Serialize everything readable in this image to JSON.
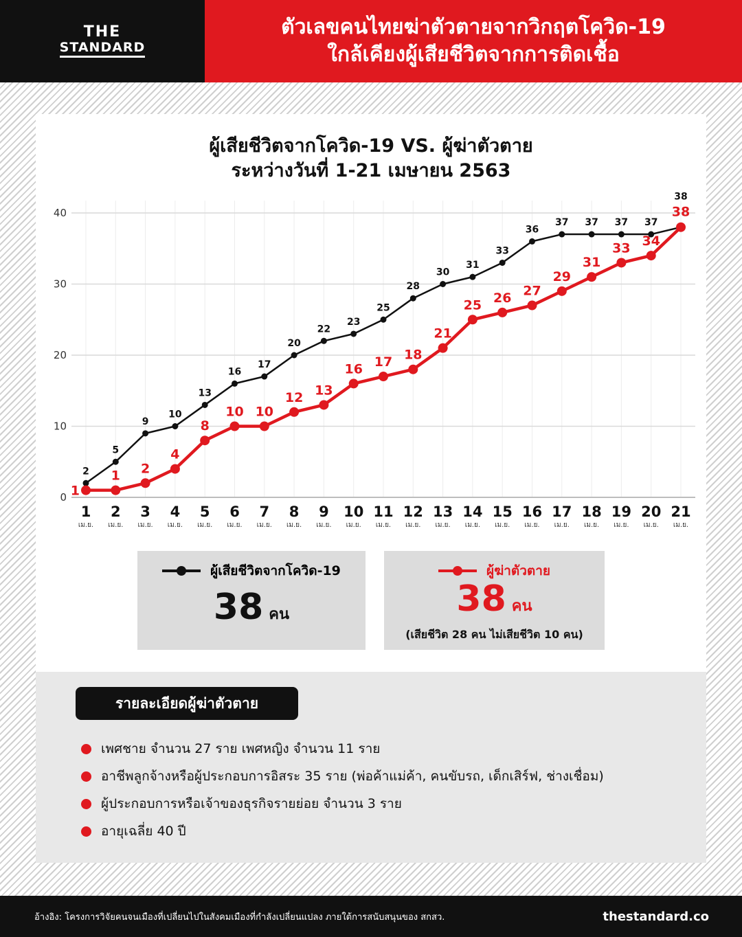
{
  "header": {
    "logo_line1": "THE",
    "logo_line2": "STANDARD",
    "title_line1": "ตัวเลขคนไทยฆ่าตัวตายจากวิกฤตโควิด-19",
    "title_line2": "ใกล้เคียงผู้เสียชีวิตจากการติดเชื้อ"
  },
  "colors": {
    "red": "#e0191f",
    "black": "#111111"
  },
  "chart_data": {
    "type": "line",
    "title_line1": "ผู้เสียชีวิตจากโควิด-19 VS. ผู้ฆ่าตัวตาย",
    "title_line2": "ระหว่างวันที่ 1-21 เมษายน 2563",
    "x": [
      "1",
      "2",
      "3",
      "4",
      "5",
      "6",
      "7",
      "8",
      "9",
      "10",
      "11",
      "12",
      "13",
      "14",
      "15",
      "16",
      "17",
      "18",
      "19",
      "20",
      "21"
    ],
    "x_sublabel": "เม.ย.",
    "ylim": [
      0,
      40
    ],
    "yticks": [
      0,
      10,
      20,
      30,
      40
    ],
    "grid": true,
    "series": [
      {
        "name": "ผู้เสียชีวิตจากโควิด-19",
        "color": "#111111",
        "values": [
          2,
          5,
          9,
          10,
          13,
          16,
          17,
          20,
          22,
          23,
          25,
          28,
          30,
          31,
          33,
          36,
          37,
          37,
          37,
          37,
          38
        ]
      },
      {
        "name": "ผู้ฆ่าตัวตาย",
        "color": "#e0191f",
        "values": [
          1,
          1,
          2,
          4,
          8,
          10,
          10,
          12,
          13,
          16,
          17,
          18,
          21,
          25,
          26,
          27,
          29,
          31,
          33,
          34,
          38
        ]
      }
    ]
  },
  "legend": {
    "covid": {
      "label": "ผู้เสียชีวิตจากโควิด-19",
      "value": "38",
      "unit": "คน"
    },
    "suicide": {
      "label": "ผู้ฆ่าตัวตาย",
      "value": "38",
      "unit": "คน",
      "note": "(เสียชีวิต 28 คน ไม่เสียชีวิต 10 คน)"
    }
  },
  "details": {
    "heading": "รายละเอียดผู้ฆ่าตัวตาย",
    "items": [
      "เพศชาย จำนวน 27 ราย เพศหญิง จำนวน 11 ราย",
      "อาชีพลูกจ้างหรือผู้ประกอบการอิสระ 35 ราย (พ่อค้าแม่ค้า, คนขับรถ, เด็กเสิร์ฟ, ช่างเชื่อม)",
      "ผู้ประกอบการหรือเจ้าของธุรกิจรายย่อย จำนวน 3 ราย",
      "อายุเฉลี่ย 40 ปี"
    ]
  },
  "footer": {
    "source": "อ้างอิง: โครงการวิจัยคนจนเมืองที่เปลี่ยนไปในสังคมเมืองที่กำลังเปลี่ยนแปลง ภายใต้การสนับสนุนของ สกสว.",
    "site": "thestandard.co"
  }
}
